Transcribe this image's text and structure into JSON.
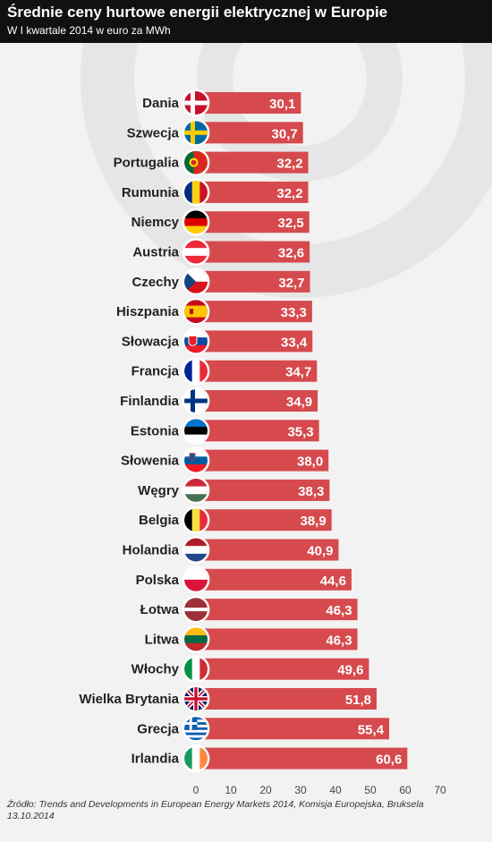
{
  "header": {
    "title": "Średnie ceny hurtowe energii elektrycznej w Europie",
    "subtitle": "W I kwartale 2014 w euro za MWh"
  },
  "source": "Źródło: Trends and Developments in European Energy Markets 2014, Komisja Europejska, Bruksela 13.10.2014",
  "colors": {
    "bar": "#d64a4d",
    "header_bg": "#111111",
    "background": "#f2f2f2"
  },
  "chart_data": {
    "type": "bar",
    "orientation": "horizontal",
    "title": "Średnie ceny hurtowe energii elektrycznej w Europie",
    "subtitle": "W I kwartale 2014 w euro za MWh",
    "xlabel": "",
    "ylabel": "",
    "xlim": [
      0,
      70
    ],
    "ticks": [
      0,
      10,
      20,
      30,
      40,
      50,
      60,
      70
    ],
    "grid": false,
    "categories": [
      "Dania",
      "Szwecja",
      "Portugalia",
      "Rumunia",
      "Niemcy",
      "Austria",
      "Czechy",
      "Hiszpania",
      "Słowacja",
      "Francja",
      "Finlandia",
      "Estonia",
      "Słowenia",
      "Węgry",
      "Belgia",
      "Holandia",
      "Polska",
      "Łotwa",
      "Litwa",
      "Włochy",
      "Wielka Brytania",
      "Grecja",
      "Irlandia"
    ],
    "values": [
      30.1,
      30.7,
      32.2,
      32.2,
      32.5,
      32.6,
      32.7,
      33.3,
      33.4,
      34.7,
      34.9,
      35.3,
      38.0,
      38.3,
      38.9,
      40.9,
      44.6,
      46.3,
      46.3,
      49.6,
      51.8,
      55.4,
      60.6
    ],
    "value_labels": [
      "30,1",
      "30,7",
      "32,2",
      "32,2",
      "32,5",
      "32,6",
      "32,7",
      "33,3",
      "33,4",
      "34,7",
      "34,9",
      "35,3",
      "38,0",
      "38,3",
      "38,9",
      "40,9",
      "44,6",
      "46,3",
      "46,3",
      "49,6",
      "51,8",
      "55,4",
      "60,6"
    ],
    "tick_labels": [
      "0",
      "10",
      "20",
      "30",
      "40",
      "50",
      "60",
      "70"
    ],
    "flags": [
      "denmark-flag-icon",
      "sweden-flag-icon",
      "portugal-flag-icon",
      "romania-flag-icon",
      "germany-flag-icon",
      "austria-flag-icon",
      "czech-flag-icon",
      "spain-flag-icon",
      "slovakia-flag-icon",
      "france-flag-icon",
      "finland-flag-icon",
      "estonia-flag-icon",
      "slovenia-flag-icon",
      "hungary-flag-icon",
      "belgium-flag-icon",
      "netherlands-flag-icon",
      "poland-flag-icon",
      "latvia-flag-icon",
      "lithuania-flag-icon",
      "italy-flag-icon",
      "uk-flag-icon",
      "greece-flag-icon",
      "ireland-flag-icon"
    ]
  }
}
